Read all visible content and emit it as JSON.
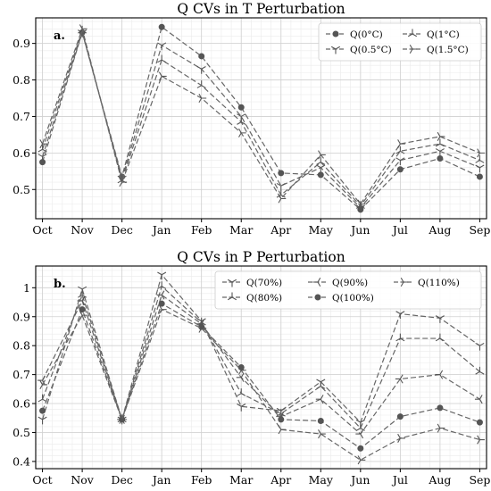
{
  "chart_data": [
    {
      "type": "line",
      "title": "Q CVs in T Perturbation",
      "panel_label": "a.",
      "categories": [
        "Oct",
        "Nov",
        "Dec",
        "Jan",
        "Feb",
        "Mar",
        "Apr",
        "May",
        "Jun",
        "Jul",
        "Aug",
        "Sep"
      ],
      "yticks": [
        0.5,
        0.6,
        0.7,
        0.8,
        0.9
      ],
      "ylim": [
        0.42,
        0.97
      ],
      "grid": true,
      "legend_position": "top-right",
      "legend_columns": 2,
      "series": [
        {
          "name": "Q(0°C)",
          "marker": "circle",
          "values": [
            0.575,
            0.93,
            0.535,
            0.945,
            0.865,
            0.725,
            0.545,
            0.54,
            0.445,
            0.555,
            0.585,
            0.535
          ]
        },
        {
          "name": "Q(0.5°C)",
          "marker": "tri_down",
          "values": [
            0.59,
            0.93,
            0.53,
            0.895,
            0.83,
            0.7,
            0.51,
            0.56,
            0.45,
            0.58,
            0.605,
            0.56
          ]
        },
        {
          "name": "Q(1°C)",
          "marker": "tri_up",
          "values": [
            0.61,
            0.935,
            0.525,
            0.855,
            0.785,
            0.685,
            0.485,
            0.575,
            0.455,
            0.605,
            0.625,
            0.58
          ]
        },
        {
          "name": "Q(1.5°C)",
          "marker": "tri_right",
          "values": [
            0.625,
            0.94,
            0.52,
            0.81,
            0.75,
            0.655,
            0.475,
            0.595,
            0.46,
            0.625,
            0.645,
            0.6
          ]
        }
      ]
    },
    {
      "type": "line",
      "title": "Q CVs in P Perturbation",
      "panel_label": "b.",
      "categories": [
        "Oct",
        "Nov",
        "Dec",
        "Jan",
        "Feb",
        "Mar",
        "Apr",
        "May",
        "Jun",
        "Jul",
        "Aug",
        "Sep"
      ],
      "yticks": [
        0.4,
        0.5,
        0.6,
        0.7,
        0.8,
        0.9,
        1.0
      ],
      "ylim": [
        0.375,
        1.075
      ],
      "grid": true,
      "legend_position": "top-right",
      "legend_columns": 3,
      "series": [
        {
          "name": "Q(70%)",
          "marker": "tri_down",
          "values": [
            0.545,
            0.995,
            0.545,
            1.045,
            0.885,
            0.59,
            0.575,
            0.675,
            0.535,
            0.91,
            0.895,
            0.8
          ]
        },
        {
          "name": "Q(80%)",
          "marker": "tri_up",
          "values": [
            0.615,
            0.975,
            0.545,
            1.005,
            0.88,
            0.635,
            0.565,
            0.66,
            0.515,
            0.825,
            0.825,
            0.71
          ]
        },
        {
          "name": "Q(90%)",
          "marker": "tri_left",
          "values": [
            0.68,
            0.955,
            0.545,
            0.975,
            0.875,
            0.69,
            0.555,
            0.615,
            0.495,
            0.685,
            0.7,
            0.615
          ]
        },
        {
          "name": "Q(100%)",
          "marker": "circle",
          "values": [
            0.575,
            0.925,
            0.545,
            0.945,
            0.865,
            0.725,
            0.545,
            0.54,
            0.445,
            0.555,
            0.585,
            0.535
          ]
        },
        {
          "name": "Q(110%)",
          "marker": "tri_right",
          "values": [
            0.665,
            0.905,
            0.545,
            0.925,
            0.86,
            0.715,
            0.51,
            0.495,
            0.405,
            0.48,
            0.515,
            0.475
          ]
        }
      ]
    }
  ]
}
